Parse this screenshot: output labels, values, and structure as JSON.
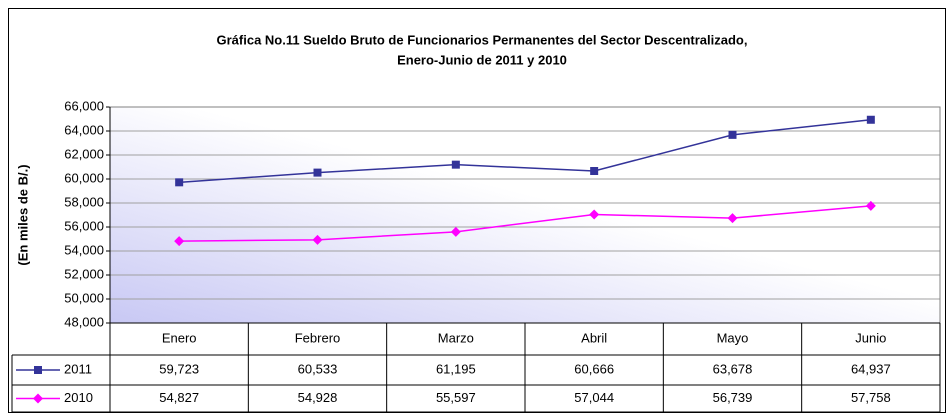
{
  "chart_data": {
    "type": "line",
    "title": [
      "Gráfica No.11 Sueldo Bruto de Funcionarios Permanentes del Sector Descentralizado,",
      "Enero-Junio de 2011 y 2010"
    ],
    "y_label": "(En miles de B/.)",
    "categories": [
      "Enero",
      "Febrero",
      "Marzo",
      "Abril",
      "Mayo",
      "Junio"
    ],
    "series": [
      {
        "name": "2011",
        "color": "#333399",
        "marker": "square",
        "values": [
          59723,
          60533,
          61195,
          60666,
          63678,
          64937
        ],
        "value_labels": [
          "59,723",
          "60,533",
          "61,195",
          "60,666",
          "63,678",
          "64,937"
        ]
      },
      {
        "name": "2010",
        "color": "#ff00ff",
        "marker": "diamond",
        "values": [
          54827,
          54928,
          55597,
          57044,
          56739,
          57758
        ],
        "value_labels": [
          "54,827",
          "54,928",
          "55,597",
          "57,044",
          "56,739",
          "57,758"
        ]
      }
    ],
    "ylim": [
      48000,
      66000
    ],
    "yticks": [
      {
        "value": 48000,
        "label": "48,000"
      },
      {
        "value": 50000,
        "label": "50,000"
      },
      {
        "value": 52000,
        "label": "52,000"
      },
      {
        "value": 54000,
        "label": "54,000"
      },
      {
        "value": 56000,
        "label": "56,000"
      },
      {
        "value": 58000,
        "label": "58,000"
      },
      {
        "value": 60000,
        "label": "60,000"
      },
      {
        "value": 62000,
        "label": "62,000"
      },
      {
        "value": 64000,
        "label": "64,000"
      },
      {
        "value": 66000,
        "label": "66,000"
      }
    ],
    "grid": true
  }
}
